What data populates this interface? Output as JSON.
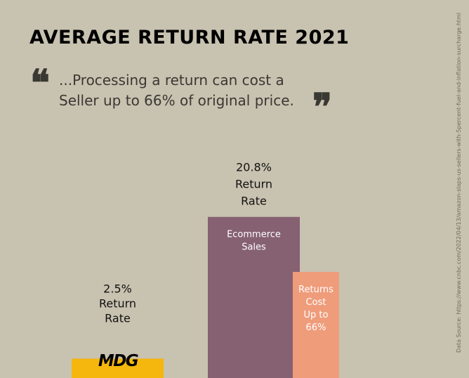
{
  "title": "AVERAGE RETURN RATE 2021",
  "quote": {
    "open_mark": "❝",
    "text": "...Processing a return can cost a Seller up to 66% of original price.",
    "close_mark": "❞"
  },
  "source": "Data Source: https://www.cnbc.com/2022/04/13/amazon-slaps-us-sellers-with-5percent-fuel-and-inflation-surcharge.html",
  "logo": "MDG",
  "colors": {
    "background": "#c8c2b0",
    "mdg_bar": "#f5b70e",
    "ecommerce_bar": "#866172",
    "returns_bar": "#ef9c7b"
  },
  "chart_data": {
    "type": "bar",
    "ylim": [
      0,
      22.5
    ],
    "bars": [
      {
        "name": "MDG",
        "value": 2.5,
        "label_above": [
          "2.5%",
          "Return",
          "Rate"
        ],
        "label_inside": [],
        "color": "#f5b70e"
      },
      {
        "name": "Ecommerce Sales",
        "value": 20.8,
        "label_above": [
          "20.8%",
          "Return",
          "Rate"
        ],
        "label_inside": [
          "Ecommerce",
          "Sales"
        ],
        "color": "#866172"
      },
      {
        "name": "Returns Cost",
        "value": 13.7,
        "label_above": [],
        "label_inside": [
          "Returns",
          "Cost",
          "Up to",
          "66%"
        ],
        "color": "#ef9c7b"
      }
    ]
  }
}
